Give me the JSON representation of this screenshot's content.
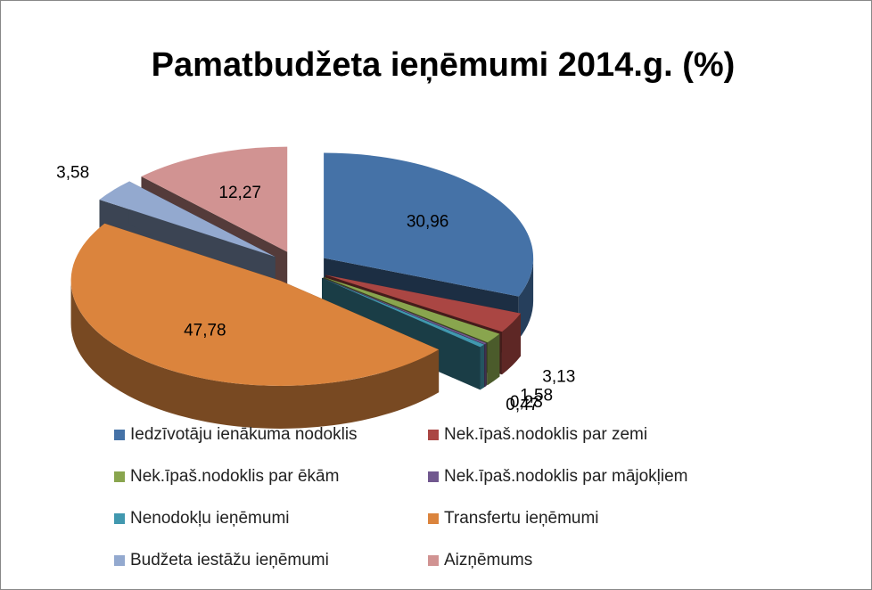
{
  "chart_data": {
    "type": "pie",
    "title": "Pamatbudžeta ieņēmumi 2014.g. (%)",
    "categories": [
      "Iedzīvotāju ienākuma nodoklis",
      "Nek.īpaš.nodoklis par zemi",
      "Nek.īpaš.nodoklis par ēkām",
      "Nek.īpaš.nodoklis par mājokļiem",
      "Nenodokļu ieņēmumi",
      "Transfertu ieņēmumi",
      "Budžeta iestāžu ieņēmumi",
      "Aizņēmums"
    ],
    "values": [
      30.96,
      3.13,
      1.58,
      0.23,
      0.47,
      47.78,
      3.58,
      12.27
    ],
    "value_labels": [
      "30,96",
      "3,13",
      "1,58",
      "0,23",
      "0,47",
      "47,78",
      "3,58",
      "12,27"
    ],
    "colors": [
      "#4572a7",
      "#aa4643",
      "#89a54e",
      "#71588f",
      "#4198af",
      "#db843d",
      "#93a9cf",
      "#d19392"
    ],
    "legend": "bottom"
  }
}
